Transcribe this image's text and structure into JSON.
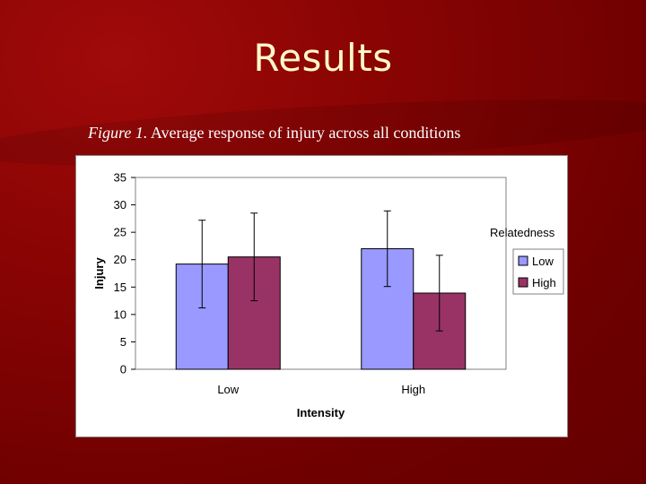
{
  "slide": {
    "title": "Results",
    "caption_figure": "Figure 1.",
    "caption_text": " Average response of injury across all conditions"
  },
  "colors": {
    "background": "#7a0000",
    "title": "#fff8c8",
    "series_low": "#9999ff",
    "series_high": "#993366"
  },
  "chart_data": {
    "type": "bar",
    "title": "",
    "xlabel": "Intensity",
    "ylabel": "Injury",
    "categories": [
      "Low",
      "High"
    ],
    "ylim": [
      0,
      35
    ],
    "yticks": [
      0,
      5,
      10,
      15,
      20,
      25,
      30,
      35
    ],
    "legend_title": "Relatedness",
    "legend_position": "right",
    "grid": false,
    "series": [
      {
        "name": "Low",
        "color": "#9999ff",
        "values": [
          19.2,
          22.0
        ],
        "error": [
          8.0,
          6.9
        ]
      },
      {
        "name": "High",
        "color": "#993366",
        "values": [
          20.5,
          13.9
        ],
        "error": [
          8.0,
          6.9
        ]
      }
    ]
  }
}
